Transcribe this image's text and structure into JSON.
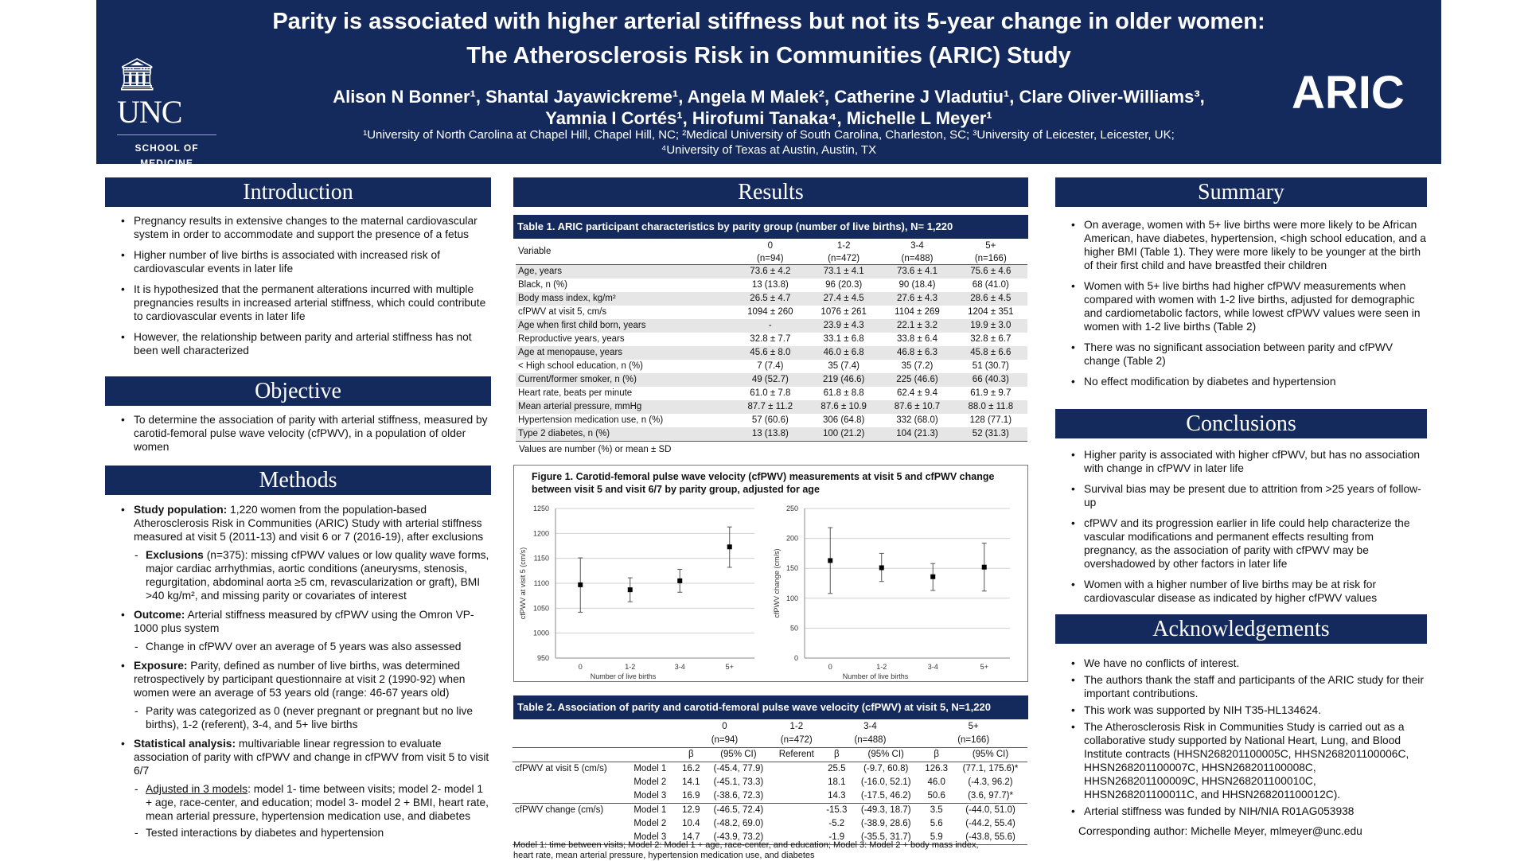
{
  "header": {
    "title_line1": "Parity is associated with higher arterial stiffness but not its 5-year change in older women:",
    "title_line2": "The Atherosclerosis Risk in Communities (ARIC) Study",
    "authors_line1": "Alison N Bonner¹, Shantal Jayawickreme¹, Angela M Malek², Catherine J Vladutiu¹, Clare Oliver-Williams³,",
    "authors_line2": "Yamnia I Cortés¹, Hirofumi Tanaka⁴, Michelle L Meyer¹",
    "affil_line1": "¹University of North Carolina at Chapel Hill, Chapel Hill, NC; ²Medical University of South Carolina, Charleston, SC; ³University of Leicester, Leicester, UK;",
    "affil_line2": "⁴University of Texas at Austin, Austin, TX",
    "logo_left_word": "UNC",
    "logo_left_sub1": "SCHOOL OF",
    "logo_left_sub2": "MEDICINE",
    "logo_right": "ARIC"
  },
  "introduction": {
    "heading": "Introduction",
    "bullets": [
      "Pregnancy results in extensive changes to the maternal cardiovascular system in order to accommodate and support the presence of a fetus",
      "Higher number of live births is associated with increased risk of cardiovascular events in later life",
      "It is hypothesized that the permanent alterations incurred with multiple pregnancies results in increased arterial stiffness, which could contribute to cardiovascular events in later life",
      "However, the relationship between parity and arterial stiffness has not been well characterized"
    ]
  },
  "objective": {
    "heading": "Objective",
    "bullets": [
      "To determine the association of parity with arterial stiffness, measured by carotid-femoral pulse wave velocity (cfPWV), in a population of older women"
    ]
  },
  "methods": {
    "heading": "Methods",
    "study_label": "Study population:",
    "study_text": " 1,220 women from the population-based Atherosclerosis Risk in Communities (ARIC) Study with arterial stiffness measured at visit 5 (2011-13) and visit 6 or 7 (2016-19), after exclusions",
    "excl_label": "Exclusions",
    "excl_text": " (n=375): missing cfPWV values or low quality wave forms, major cardiac arrhythmias, aortic conditions (aneurysms, stenosis, regurgitation, abdominal aorta ≥5 cm, revascularization or graft), BMI >40 kg/m², and missing parity or covariates of interest",
    "outcome_label": "Outcome:",
    "outcome_text": " Arterial stiffness measured by cfPWV using the Omron VP-1000 plus system",
    "outcome_sub": "Change in cfPWV over an average of 5 years was also assessed",
    "exposure_label": "Exposure:",
    "exposure_text": " Parity, defined as number of live births, was determined retrospectively by participant questionnaire at visit 2 (1990-92) when women were an average of 53 years old (range: 46-67 years old)",
    "exposure_sub": "Parity was categorized as 0 (never pregnant or pregnant but no live births), 1-2 (referent), 3-4, and 5+ live births",
    "stat_label": "Statistical analysis:",
    "stat_text": " multivariable linear regression to evaluate association of parity with cfPWV and change in cfPWV from visit 5 to visit 6/7",
    "stat_sub1_u": "Adjusted in 3 models",
    "stat_sub1": ": model 1- time between visits; model 2- model 1 + age, race-center, and education; model 3- model 2 + BMI, heart rate, mean arterial pressure, hypertension medication use, and diabetes",
    "stat_sub2": "Tested interactions by diabetes and hypertension"
  },
  "results": {
    "heading": "Results"
  },
  "table1": {
    "caption": "Table 1. ARIC participant characteristics by parity group (number of live births), N= 1,220",
    "var_header": "Variable",
    "groups": [
      "0",
      "1-2",
      "3-4",
      "5+"
    ],
    "ns": [
      "(n=94)",
      "(n=472)",
      "(n=488)",
      "(n=166)"
    ],
    "rows": [
      [
        "Age, years",
        "73.6 ± 4.2",
        "73.1 ± 4.1",
        "73.6 ± 4.1",
        "75.6 ± 4.6"
      ],
      [
        "Black, n (%)",
        "13 (13.8)",
        "96 (20.3)",
        "90 (18.4)",
        "68 (41.0)"
      ],
      [
        "Body mass index, kg/m²",
        "26.5 ± 4.7",
        "27.4 ± 4.5",
        "27.6 ± 4.3",
        "28.6 ± 4.5"
      ],
      [
        "cfPWV at visit 5, cm/s",
        "1094 ± 260",
        "1076 ± 261",
        "1104 ± 269",
        "1204 ± 351"
      ],
      [
        "Age when first child born, years",
        "-",
        "23.9 ± 4.3",
        "22.1 ± 3.2",
        "19.9 ± 3.0"
      ],
      [
        "Reproductive years, years",
        "32.8 ± 7.7",
        "33.1 ± 6.8",
        "33.8 ± 6.4",
        "32.8 ± 6.7"
      ],
      [
        "Age at menopause, years",
        "45.6 ± 8.0",
        "46.0 ± 6.8",
        "46.8 ± 6.3",
        "45.8 ± 6.6"
      ],
      [
        "< High school education, n (%)",
        "7 (7.4)",
        "35 (7.4)",
        "35 (7.2)",
        "51 (30.7)"
      ],
      [
        "Current/former smoker, n (%)",
        "49 (52.7)",
        "219 (46.6)",
        "225 (46.6)",
        "66 (40.3)"
      ],
      [
        "Heart rate, beats per minute",
        "61.0 ± 7.8",
        "61.8 ± 8.8",
        "62.4 ± 9.4",
        "61.9 ± 9.7"
      ],
      [
        "Mean arterial pressure, mmHg",
        "87.7 ± 11.2",
        "87.6 ± 10.9",
        "87.6 ± 10.7",
        "88.0 ± 11.8"
      ],
      [
        "Hypertension medication use, n (%)",
        "57 (60.6)",
        "306 (64.8)",
        "332 (68.0)",
        "128 (77.1)"
      ],
      [
        "Type 2 diabetes, n (%)",
        "13 (13.8)",
        "100 (21.2)",
        "104 (21.3)",
        "52 (31.3)"
      ]
    ],
    "note": "Values are number (%) or mean ± SD"
  },
  "figure1": {
    "caption": "Figure 1. Carotid-femoral pulse wave velocity (cfPWV) measurements at visit 5 and cfPWV change between visit 5 and visit 6/7 by parity group, adjusted for age"
  },
  "chart_data": [
    {
      "type": "scatter",
      "xlabel": "Number of live births",
      "ylabel": "cfPWV at visit 5 (cm/s)",
      "categories": [
        "0",
        "1-2",
        "3-4",
        "5+"
      ],
      "values": [
        1097,
        1087,
        1105,
        1173
      ],
      "lower": [
        1042,
        1063,
        1082,
        1132
      ],
      "upper": [
        1151,
        1111,
        1128,
        1213
      ],
      "ylim": [
        950,
        1250
      ],
      "yticks": [
        950,
        1000,
        1050,
        1100,
        1150,
        1200,
        1250
      ],
      "grid": true
    },
    {
      "type": "scatter",
      "xlabel": "Number of live births",
      "ylabel": "cfPWV change (cm/s)",
      "categories": [
        "0",
        "1-2",
        "3-4",
        "5+"
      ],
      "values": [
        163,
        151,
        136,
        152
      ],
      "lower": [
        108,
        128,
        113,
        112
      ],
      "upper": [
        218,
        175,
        158,
        192
      ],
      "ylim": [
        0,
        250
      ],
      "yticks": [
        0,
        50,
        100,
        150,
        200,
        250
      ],
      "grid": true
    }
  ],
  "table2": {
    "caption": "Table 2. Association of parity and carotid-femoral pulse wave velocity (cfPWV) at visit 5, N=1,220",
    "groups": [
      "0",
      "1-2",
      "3-4",
      "5+"
    ],
    "ns": [
      "(n=94)",
      "(n=472)",
      "(n=488)",
      "(n=166)"
    ],
    "sub": [
      "β",
      "(95% CI)",
      "Referent",
      "β",
      "(95% CI)",
      "β",
      "(95% CI)"
    ],
    "rows": [
      [
        "cfPWV at visit 5 (cm/s)",
        "Model 1",
        "16.2",
        "(-45.4, 77.9)",
        "",
        "25.5",
        "(-9.7, 60.8)",
        "126.3",
        "(77.1, 175.6)*"
      ],
      [
        "",
        "Model 2",
        "14.1",
        "(-45.1, 73.3)",
        "",
        "18.1",
        "(-16.0, 52.1)",
        "46.0",
        "(-4.3, 96.2)"
      ],
      [
        "",
        "Model 3",
        "16.9",
        "(-38.6, 72.3)",
        "",
        "14.3",
        "(-17.5, 46.2)",
        "50.6",
        "(3.6, 97.7)*"
      ],
      [
        "cfPWV change (cm/s)",
        "Model 1",
        "12.9",
        "(-46.5, 72.4)",
        "",
        "-15.3",
        "(-49.3, 18.7)",
        "3.5",
        "(-44.0, 51.0)"
      ],
      [
        "",
        "Model 2",
        "10.4",
        "(-48.2, 69.0)",
        "",
        "-5.2",
        "(-38.9, 28.6)",
        "5.6",
        "(-44.2, 55.4)"
      ],
      [
        "",
        "Model 3",
        "14.7",
        "(-43.9, 73.2)",
        "",
        "-1.9",
        "(-35.5, 31.7)",
        "5.9",
        "(-43.8, 55.6)"
      ]
    ],
    "note1": "Model 1: time between visits; Model 2: Model 1 + age, race-center, and education; Model 3: Model 2 + body mass index,",
    "note2": "heart rate, mean arterial pressure, hypertension medication use, and diabetes"
  },
  "summary": {
    "heading": "Summary",
    "bullets": [
      "On average, women with 5+ live births were more likely to be African American, have diabetes, hypertension, <high school education, and a higher BMI (Table 1). They were more likely to be younger at the birth of their first child and have breastfed their children",
      "Women with 5+ live births had higher cfPWV measurements when compared with women with 1-2 live births, adjusted for demographic and cardiometabolic factors, while lowest cfPWV values were seen in women with 1-2 live births (Table 2)",
      "There was no significant association between parity and cfPWV change (Table 2)",
      "No effect modification by diabetes and hypertension"
    ]
  },
  "conclusions": {
    "heading": "Conclusions",
    "bullets": [
      "Higher parity is associated with higher cfPWV, but has no association with change in cfPWV in later life",
      "Survival bias may be present due to attrition from >25 years of follow-up",
      "cfPWV and its progression earlier in life could help characterize the vascular modifications and permanent effects resulting from pregnancy, as the association of parity with cfPWV may be overshadowed by other factors in later life",
      "Women with a higher number of live births may be at risk for cardiovascular disease as indicated by higher cfPWV values"
    ]
  },
  "acknowledgements": {
    "heading": "Acknowledgements",
    "bullets": [
      "We have no conflicts of interest.",
      "The authors thank the staff and participants of the ARIC study for their important contributions.",
      "This work was supported by NIH T35-HL134624.",
      "The Atherosclerosis Risk in Communities Study is carried out as a collaborative study supported by National Heart, Lung, and Blood Institute contracts (HHSN268201100005C, HHSN268201100006C, HHSN268201100007C, HHSN268201100008C, HHSN268201100009C, HHSN268201100010C, HHSN268201100011C, and HHSN268201100012C).",
      "Arterial stiffness was funded by NIH/NIA R01AG053938"
    ],
    "corresponding": "Corresponding author: Michelle Meyer, mlmeyer@unc.edu"
  },
  "colors": {
    "navy": "#142a5c",
    "stripe": "#e6e6e6"
  }
}
